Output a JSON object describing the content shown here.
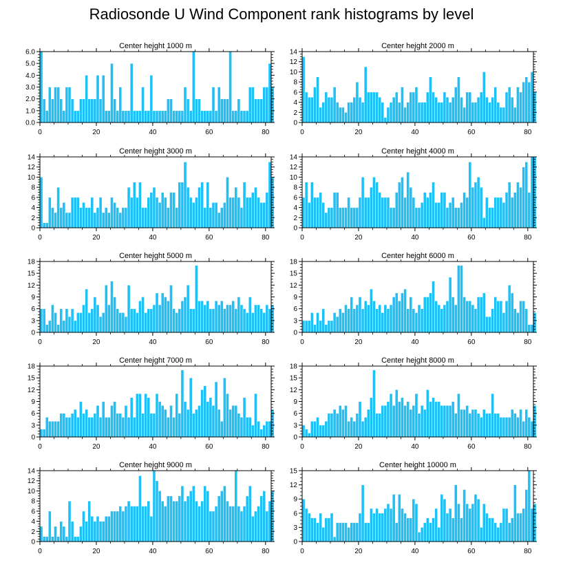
{
  "title": "Radiosonde U Wind Component rank histograms by level",
  "colors": {
    "bar": "#1fc0f5",
    "bar_edge": "#ffffff",
    "axis": "#000000"
  },
  "chart_data": [
    {
      "type": "bar",
      "title": "Center height 1000 m",
      "xlim": [
        0,
        82
      ],
      "ylim": [
        0,
        6
      ],
      "yticks": [
        0.0,
        1.0,
        2.0,
        3.0,
        4.0,
        5.0,
        6.0
      ],
      "ytick_labels": [
        "0.0",
        "1.0",
        "2.0",
        "3.0",
        "4.0",
        "5.0",
        "6.0"
      ],
      "xticks": [
        0,
        20,
        40,
        60,
        80
      ],
      "values": [
        6,
        2,
        1,
        3,
        2,
        3,
        3,
        2,
        1,
        3,
        3,
        2,
        1,
        1,
        2,
        2,
        4,
        2,
        2,
        2,
        4,
        2,
        4,
        1,
        1,
        5,
        2,
        1,
        3,
        1,
        1,
        1,
        5,
        1,
        1,
        1,
        3,
        1,
        1,
        4,
        1,
        1,
        1,
        1,
        1,
        2,
        2,
        1,
        1,
        1,
        1,
        3,
        2,
        1,
        6,
        2,
        2,
        1,
        1,
        1,
        1,
        3,
        1,
        3,
        2,
        2,
        2,
        6,
        1,
        1,
        2,
        1,
        1,
        1,
        3,
        3,
        2,
        2,
        2,
        3,
        3,
        5,
        3
      ]
    },
    {
      "type": "bar",
      "title": "Center height 2000 m",
      "xlim": [
        0,
        82
      ],
      "ylim": [
        0,
        14
      ],
      "yticks": [
        0,
        2,
        4,
        6,
        8,
        10,
        12,
        14
      ],
      "ytick_labels": [
        "0",
        "2",
        "4",
        "6",
        "8",
        "10",
        "12",
        "14"
      ],
      "xticks": [
        0,
        20,
        40,
        60,
        80
      ],
      "values": [
        13,
        6,
        5,
        5,
        7,
        9,
        3,
        4,
        6,
        5,
        5,
        7,
        4,
        3,
        3,
        2,
        4,
        4,
        5,
        8,
        5,
        4,
        11,
        6,
        6,
        6,
        6,
        5,
        4,
        1,
        3,
        4,
        5,
        6,
        4,
        7,
        3,
        4,
        6,
        6,
        7,
        4,
        4,
        4,
        6,
        9,
        6,
        5,
        4,
        4,
        6,
        5,
        4,
        5,
        7,
        9,
        5,
        3,
        6,
        6,
        4,
        4,
        5,
        6,
        10,
        5,
        4,
        5,
        7,
        4,
        3,
        3,
        6,
        7,
        5,
        3,
        7,
        6,
        8,
        9,
        8,
        10,
        6
      ]
    },
    {
      "type": "bar",
      "title": "Center height 3000 m",
      "xlim": [
        0,
        82
      ],
      "ylim": [
        0,
        14
      ],
      "yticks": [
        0,
        2,
        4,
        6,
        8,
        10,
        12,
        14
      ],
      "ytick_labels": [
        "0",
        "2",
        "4",
        "6",
        "8",
        "10",
        "12",
        "14"
      ],
      "xticks": [
        0,
        20,
        40,
        60,
        80
      ],
      "values": [
        10,
        1,
        1,
        6,
        4,
        3,
        8,
        4,
        5,
        3,
        3,
        6,
        6,
        6,
        4,
        5,
        4,
        4,
        6,
        3,
        4,
        6,
        3,
        4,
        3,
        6,
        5,
        4,
        3,
        4,
        4,
        8,
        6,
        9,
        6,
        9,
        4,
        4,
        6,
        7,
        8,
        6,
        5,
        7,
        6,
        4,
        7,
        7,
        4,
        9,
        9,
        13,
        8,
        6,
        5,
        6,
        8,
        9,
        4,
        9,
        4,
        5,
        5,
        3,
        4,
        5,
        10,
        6,
        6,
        8,
        6,
        4,
        9,
        6,
        6,
        7,
        8,
        6,
        5,
        5,
        7,
        13,
        10
      ]
    },
    {
      "type": "bar",
      "title": "Center height 4000 m",
      "xlim": [
        0,
        82
      ],
      "ylim": [
        0,
        14
      ],
      "yticks": [
        0,
        2,
        4,
        6,
        8,
        10,
        12,
        14
      ],
      "ytick_labels": [
        "0",
        "2",
        "4",
        "6",
        "8",
        "10",
        "12",
        "14"
      ],
      "xticks": [
        0,
        20,
        40,
        60,
        80
      ],
      "values": [
        6,
        9,
        5,
        9,
        6,
        6,
        7,
        5,
        3,
        4,
        4,
        7,
        7,
        4,
        4,
        4,
        6,
        4,
        4,
        4,
        6,
        10,
        6,
        6,
        8,
        10,
        9,
        7,
        6,
        6,
        6,
        4,
        4,
        7,
        9,
        10,
        6,
        11,
        8,
        6,
        4,
        4,
        5,
        7,
        6,
        7,
        9,
        5,
        5,
        7,
        7,
        4,
        5,
        6,
        4,
        4,
        5,
        7,
        6,
        13,
        8,
        9,
        10,
        8,
        2,
        6,
        4,
        4,
        6,
        6,
        6,
        5,
        7,
        9,
        6,
        7,
        9,
        8,
        12,
        13,
        7,
        14,
        14
      ]
    },
    {
      "type": "bar",
      "title": "Center height 5000 m",
      "xlim": [
        0,
        82
      ],
      "ylim": [
        0,
        18
      ],
      "yticks": [
        0,
        3,
        6,
        9,
        12,
        15,
        18
      ],
      "ytick_labels": [
        "0",
        "3",
        "6",
        "9",
        "12",
        "15",
        "18"
      ],
      "xticks": [
        0,
        20,
        40,
        60,
        80
      ],
      "values": [
        6,
        6,
        2,
        3,
        7,
        5,
        2,
        6,
        3,
        6,
        4,
        6,
        3,
        5,
        5,
        7,
        11,
        5,
        6,
        9,
        7,
        4,
        5,
        12,
        7,
        13,
        9,
        6,
        5,
        5,
        4,
        12,
        6,
        6,
        5,
        8,
        9,
        5,
        6,
        6,
        7,
        10,
        7,
        10,
        9,
        8,
        12,
        6,
        5,
        6,
        8,
        9,
        12,
        6,
        6,
        17,
        8,
        8,
        7,
        8,
        6,
        6,
        8,
        7,
        8,
        6,
        7,
        7,
        8,
        6,
        9,
        7,
        6,
        5,
        9,
        5,
        7,
        7,
        6,
        5,
        7,
        6,
        7
      ]
    },
    {
      "type": "bar",
      "title": "Center height 6000 m",
      "xlim": [
        0,
        82
      ],
      "ylim": [
        0,
        18
      ],
      "yticks": [
        0,
        3,
        6,
        9,
        12,
        15,
        18
      ],
      "ytick_labels": [
        "0",
        "3",
        "6",
        "9",
        "12",
        "15",
        "18"
      ],
      "xticks": [
        0,
        20,
        40,
        60,
        80
      ],
      "values": [
        3,
        3,
        3,
        5,
        2,
        5,
        3,
        6,
        2,
        3,
        3,
        5,
        4,
        6,
        5,
        7,
        6,
        9,
        6,
        7,
        9,
        6,
        8,
        7,
        11,
        8,
        6,
        7,
        5,
        7,
        6,
        7,
        9,
        10,
        8,
        10,
        11,
        6,
        9,
        6,
        5,
        7,
        6,
        9,
        9,
        10,
        13,
        8,
        7,
        6,
        7,
        8,
        14,
        9,
        7,
        17,
        17,
        9,
        8,
        8,
        7,
        6,
        9,
        9,
        10,
        4,
        4,
        6,
        9,
        8,
        8,
        5,
        8,
        12,
        10,
        6,
        5,
        8,
        8,
        6,
        2,
        2,
        5
      ]
    },
    {
      "type": "bar",
      "title": "Center height 7000 m",
      "xlim": [
        0,
        82
      ],
      "ylim": [
        0,
        18
      ],
      "yticks": [
        0,
        3,
        6,
        9,
        12,
        15,
        18
      ],
      "ytick_labels": [
        "0",
        "3",
        "6",
        "9",
        "12",
        "15",
        "18"
      ],
      "xticks": [
        0,
        20,
        40,
        60,
        80
      ],
      "values": [
        2,
        2,
        5,
        4,
        4,
        4,
        4,
        6,
        6,
        5,
        5,
        6,
        7,
        5,
        9,
        6,
        7,
        5,
        5,
        6,
        8,
        5,
        9,
        5,
        5,
        8,
        9,
        6,
        6,
        5,
        8,
        5,
        10,
        5,
        11,
        11,
        6,
        11,
        10,
        6,
        6,
        11,
        9,
        8,
        7,
        5,
        8,
        5,
        11,
        6,
        17,
        9,
        7,
        15,
        6,
        7,
        8,
        12,
        13,
        9,
        10,
        8,
        14,
        7,
        4,
        15,
        11,
        7,
        8,
        8,
        6,
        5,
        10,
        5,
        5,
        3,
        11,
        4,
        2,
        3,
        4,
        4,
        7
      ]
    },
    {
      "type": "bar",
      "title": "Center height 8000 m",
      "xlim": [
        0,
        82
      ],
      "ylim": [
        0,
        18
      ],
      "yticks": [
        0,
        3,
        6,
        9,
        12,
        15,
        18
      ],
      "ytick_labels": [
        "0",
        "3",
        "6",
        "9",
        "12",
        "15",
        "18"
      ],
      "xticks": [
        0,
        20,
        40,
        60,
        80
      ],
      "values": [
        3,
        2,
        1,
        4,
        4,
        5,
        3,
        3,
        4,
        6,
        6,
        7,
        6,
        8,
        7,
        8,
        4,
        5,
        4,
        6,
        9,
        4,
        5,
        7,
        10,
        17,
        6,
        6,
        8,
        8,
        9,
        11,
        8,
        12,
        9,
        10,
        8,
        9,
        7,
        8,
        11,
        6,
        8,
        7,
        12,
        9,
        10,
        9,
        9,
        8,
        8,
        8,
        8,
        9,
        6,
        11,
        7,
        7,
        8,
        6,
        7,
        7,
        6,
        5,
        7,
        6,
        6,
        11,
        6,
        6,
        5,
        5,
        5,
        5,
        7,
        6,
        5,
        7,
        4,
        7,
        5,
        4,
        8
      ]
    },
    {
      "type": "bar",
      "title": "Center height 9000 m",
      "xlim": [
        0,
        82
      ],
      "ylim": [
        0,
        14
      ],
      "yticks": [
        0,
        2,
        4,
        6,
        8,
        10,
        12,
        14
      ],
      "ytick_labels": [
        "0",
        "2",
        "4",
        "6",
        "8",
        "10",
        "12",
        "14"
      ],
      "xticks": [
        0,
        20,
        40,
        60,
        80
      ],
      "values": [
        3,
        1,
        1,
        6,
        1,
        3,
        1,
        4,
        3,
        1,
        8,
        4,
        1,
        1,
        3,
        6,
        4,
        8,
        5,
        4,
        5,
        4,
        4,
        5,
        5,
        6,
        6,
        6,
        7,
        6,
        7,
        8,
        7,
        7,
        7,
        13,
        7,
        7,
        8,
        5,
        14,
        12,
        10,
        8,
        7,
        9,
        9,
        8,
        8,
        9,
        11,
        8,
        9,
        10,
        11,
        8,
        7,
        8,
        11,
        10,
        6,
        6,
        7,
        9,
        10,
        11,
        8,
        7,
        7,
        14,
        7,
        6,
        7,
        9,
        11,
        5,
        6,
        7,
        9,
        10,
        6,
        8,
        10
      ]
    },
    {
      "type": "bar",
      "title": "Center height 10000 m",
      "xlim": [
        0,
        82
      ],
      "ylim": [
        0,
        15
      ],
      "yticks": [
        0,
        3,
        6,
        9,
        12,
        15
      ],
      "ytick_labels": [
        "0",
        "3",
        "6",
        "9",
        "12",
        "15"
      ],
      "xticks": [
        0,
        20,
        40,
        60,
        80
      ],
      "values": [
        9,
        7,
        6,
        5,
        5,
        4,
        6,
        3,
        5,
        5,
        6,
        1,
        4,
        4,
        4,
        4,
        3,
        4,
        4,
        4,
        6,
        12,
        4,
        4,
        7,
        6,
        7,
        6,
        6,
        7,
        8,
        7,
        10,
        4,
        10,
        7,
        6,
        5,
        5,
        9,
        8,
        2,
        3,
        4,
        5,
        4,
        5,
        7,
        3,
        10,
        9,
        6,
        7,
        5,
        12,
        8,
        5,
        11,
        8,
        7,
        8,
        10,
        9,
        3,
        8,
        6,
        5,
        5,
        4,
        3,
        4,
        7,
        7,
        4,
        5,
        12,
        6,
        6,
        7,
        11,
        15,
        7,
        8
      ]
    }
  ]
}
